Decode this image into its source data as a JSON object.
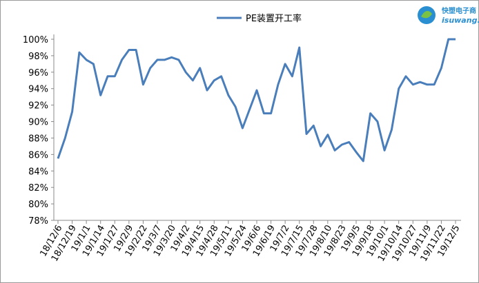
{
  "chart_data": {
    "type": "line",
    "series": [
      {
        "name": "PE装置开工率",
        "color": "#4a7ebb",
        "values": [
          85.5,
          88,
          91.2,
          98.4,
          97.5,
          97,
          93.2,
          95.5,
          95.5,
          97.5,
          98.7,
          98.7,
          94.5,
          96.5,
          97.5,
          97.5,
          97.8,
          97.5,
          96,
          95,
          96.5,
          93.8,
          95,
          95.5,
          93.2,
          91.8,
          89.2,
          91.5,
          93.8,
          91,
          91,
          94.5,
          97,
          95.5,
          99,
          88.5,
          89.5,
          87,
          88.4,
          86.5,
          87.2,
          87.5,
          86.3,
          85.2,
          91,
          90,
          86.5,
          89,
          94,
          95.5,
          94.5,
          94.8,
          94.5,
          94.5,
          96.5,
          100,
          100
        ]
      }
    ],
    "categories": [
      "18/12/6",
      null,
      "18/12/19",
      null,
      "19/1/1",
      null,
      "19/1/14",
      null,
      "19/1/27",
      null,
      "19/2/9",
      null,
      "19/2/22",
      null,
      "19/3/7",
      null,
      "19/3/20",
      null,
      "19/4/2",
      null,
      "19/4/15",
      null,
      "19/4/28",
      null,
      "19/5/11",
      null,
      "19/5/24",
      null,
      "19/6/6",
      null,
      "19/6/19",
      null,
      "19/7/2",
      null,
      "19/7/15",
      null,
      "19/7/28",
      null,
      "19/8/10",
      null,
      "19/8/23",
      null,
      "19/9/5",
      null,
      "19/9/18",
      null,
      "19/10/1",
      null,
      "19/10/14",
      null,
      "19/10/27",
      null,
      "19/11/9",
      null,
      "19/11/22",
      null,
      "19/12/5"
    ],
    "ylim": [
      78,
      100
    ],
    "yticks": [
      {
        "value": 78,
        "label": "78%"
      },
      {
        "value": 80,
        "label": "80%"
      },
      {
        "value": 82,
        "label": "82%"
      },
      {
        "value": 84,
        "label": "84%"
      },
      {
        "value": 86,
        "label": "86%"
      },
      {
        "value": 88,
        "label": "88%"
      },
      {
        "value": 90,
        "label": "90%"
      },
      {
        "value": 92,
        "label": "92%"
      },
      {
        "value": 94,
        "label": "94%"
      },
      {
        "value": 96,
        "label": "96%"
      },
      {
        "value": 98,
        "label": "98%"
      },
      {
        "value": 100,
        "label": "100%"
      }
    ],
    "grid": false,
    "legend": "top"
  },
  "logo": {
    "name": "快塑电子商",
    "url": "isuwang.co"
  }
}
